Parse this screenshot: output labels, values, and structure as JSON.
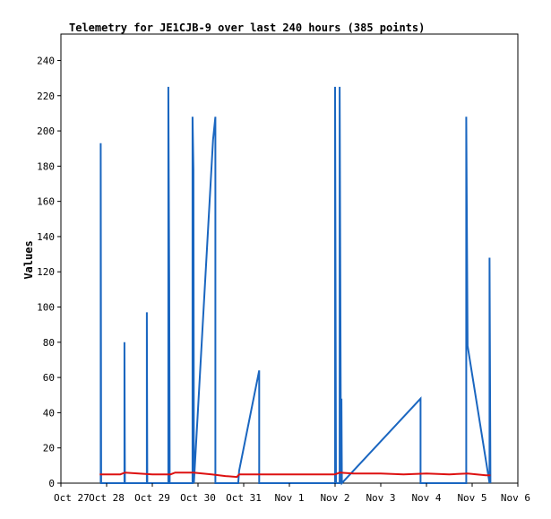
{
  "chart_data": {
    "type": "line",
    "title": "Telemetry for JE1CJB-9 over last 240 hours (385 points)",
    "xlabel": "",
    "ylabel": "Values",
    "xlim": [
      "Oct 27",
      "Nov 6"
    ],
    "ylim": [
      0,
      255
    ],
    "x_ticks": [
      "Oct 27",
      "Oct 28",
      "Oct 29",
      "Oct 30",
      "Oct 31",
      "Nov 1",
      "Nov 2",
      "Nov 3",
      "Nov 4",
      "Nov 5",
      "Nov 6"
    ],
    "y_ticks": [
      0,
      20,
      40,
      60,
      80,
      100,
      120,
      140,
      160,
      180,
      200,
      220,
      240
    ],
    "grid": false,
    "legend": "none",
    "colors": {
      "series_blue": "#1a66c0",
      "series_red": "#dd1111",
      "axis": "#000000"
    },
    "series": [
      {
        "color": "#1a66c0",
        "points": [
          [
            0.87,
            0
          ],
          [
            0.87,
            193
          ],
          [
            0.88,
            0
          ],
          [
            1.39,
            0
          ],
          [
            1.39,
            80
          ],
          [
            1.4,
            0
          ],
          [
            1.88,
            0
          ],
          [
            1.88,
            97
          ],
          [
            1.89,
            0
          ],
          [
            2.35,
            0
          ],
          [
            2.35,
            225
          ],
          [
            2.37,
            113
          ],
          [
            2.38,
            0
          ],
          [
            2.88,
            0
          ],
          [
            2.88,
            208
          ],
          [
            2.9,
            178
          ],
          [
            2.91,
            0
          ],
          [
            3.33,
            195
          ],
          [
            3.38,
            208
          ],
          [
            3.38,
            0
          ],
          [
            3.88,
            0
          ],
          [
            3.9,
            7
          ],
          [
            4.34,
            64
          ],
          [
            4.34,
            0
          ],
          [
            6.0,
            0
          ],
          [
            6.0,
            225
          ],
          [
            6.02,
            0
          ],
          [
            6.1,
            0
          ],
          [
            6.1,
            225
          ],
          [
            6.13,
            0
          ],
          [
            6.14,
            48
          ],
          [
            6.15,
            0
          ],
          [
            7.87,
            48
          ],
          [
            7.87,
            0
          ],
          [
            8.87,
            0
          ],
          [
            8.87,
            208
          ],
          [
            8.9,
            78
          ],
          [
            9.38,
            0
          ],
          [
            9.38,
            128
          ],
          [
            9.4,
            0
          ]
        ]
      },
      {
        "color": "#dd1111",
        "points": [
          [
            0.85,
            5
          ],
          [
            1.3,
            5
          ],
          [
            1.4,
            6
          ],
          [
            1.7,
            5.5
          ],
          [
            2.0,
            5
          ],
          [
            2.4,
            5
          ],
          [
            2.5,
            6
          ],
          [
            2.9,
            6
          ],
          [
            3.3,
            5
          ],
          [
            3.6,
            4
          ],
          [
            3.85,
            3.5
          ],
          [
            3.9,
            5
          ],
          [
            5.0,
            5
          ],
          [
            6.0,
            5
          ],
          [
            6.1,
            6
          ],
          [
            6.4,
            5.5
          ],
          [
            7.0,
            5.5
          ],
          [
            7.5,
            5
          ],
          [
            8.0,
            5.5
          ],
          [
            8.5,
            5
          ],
          [
            8.9,
            5.5
          ],
          [
            9.3,
            4.5
          ],
          [
            9.4,
            4.5
          ]
        ]
      }
    ]
  }
}
